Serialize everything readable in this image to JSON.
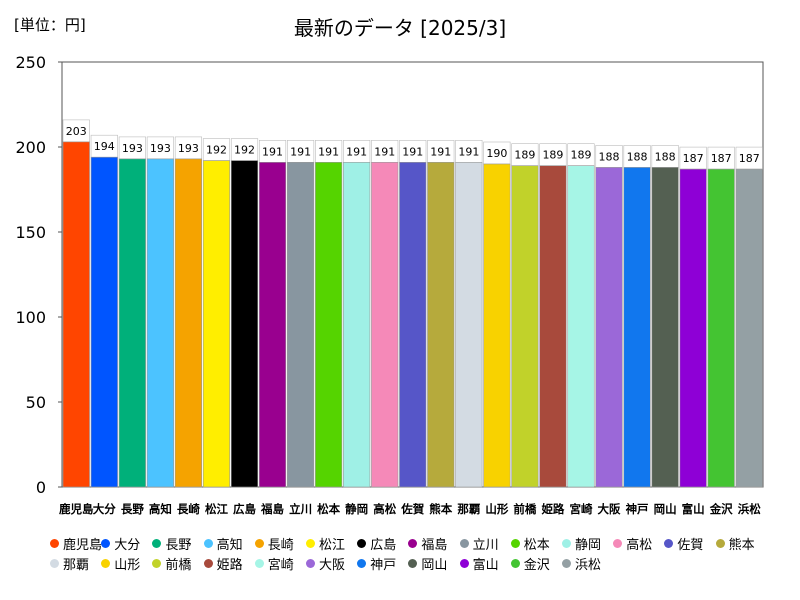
{
  "unit_label": "[単位：円]",
  "chart_data": {
    "type": "bar",
    "title": "最新のデータ [2025/3]",
    "xlabel": "",
    "ylabel": "",
    "ylim": [
      0,
      250
    ],
    "yticks": [
      0,
      50,
      100,
      150,
      200,
      250
    ],
    "grid": false,
    "legend_position": "bottom",
    "categories": [
      "鹿児島",
      "大分",
      "長野",
      "高知",
      "長崎",
      "松江",
      "広島",
      "福島",
      "立川",
      "松本",
      "静岡",
      "高松",
      "佐賀",
      "熊本",
      "那覇",
      "山形",
      "前橋",
      "姫路",
      "宮崎",
      "大阪",
      "神戸",
      "岡山",
      "富山",
      "金沢",
      "浜松"
    ],
    "values": [
      203,
      194,
      193,
      193,
      193,
      192,
      192,
      191,
      191,
      191,
      191,
      191,
      191,
      191,
      191,
      190,
      189,
      189,
      189,
      188,
      188,
      188,
      187,
      187,
      187
    ],
    "colors": [
      "#ff4500",
      "#0055ff",
      "#00b07a",
      "#4cc3ff",
      "#f5a300",
      "#ffee00",
      "#000000",
      "#99008f",
      "#8896a0",
      "#55d400",
      "#9ff0e6",
      "#f589b8",
      "#5656c8",
      "#b6aa3c",
      "#d3dbe3",
      "#f8d200",
      "#c1d22a",
      "#a84a3c",
      "#a6f5e6",
      "#9b68d8",
      "#1177ee",
      "#546052",
      "#8e00d6",
      "#44c432",
      "#94a0a4"
    ]
  }
}
